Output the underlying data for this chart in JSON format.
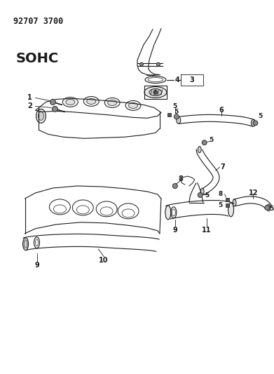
{
  "title": "92707 3700",
  "subtitle": "SOHC",
  "bg_color": "#ffffff",
  "line_color": "#1a1a1a",
  "figsize": [
    3.91,
    5.33
  ],
  "dpi": 100
}
